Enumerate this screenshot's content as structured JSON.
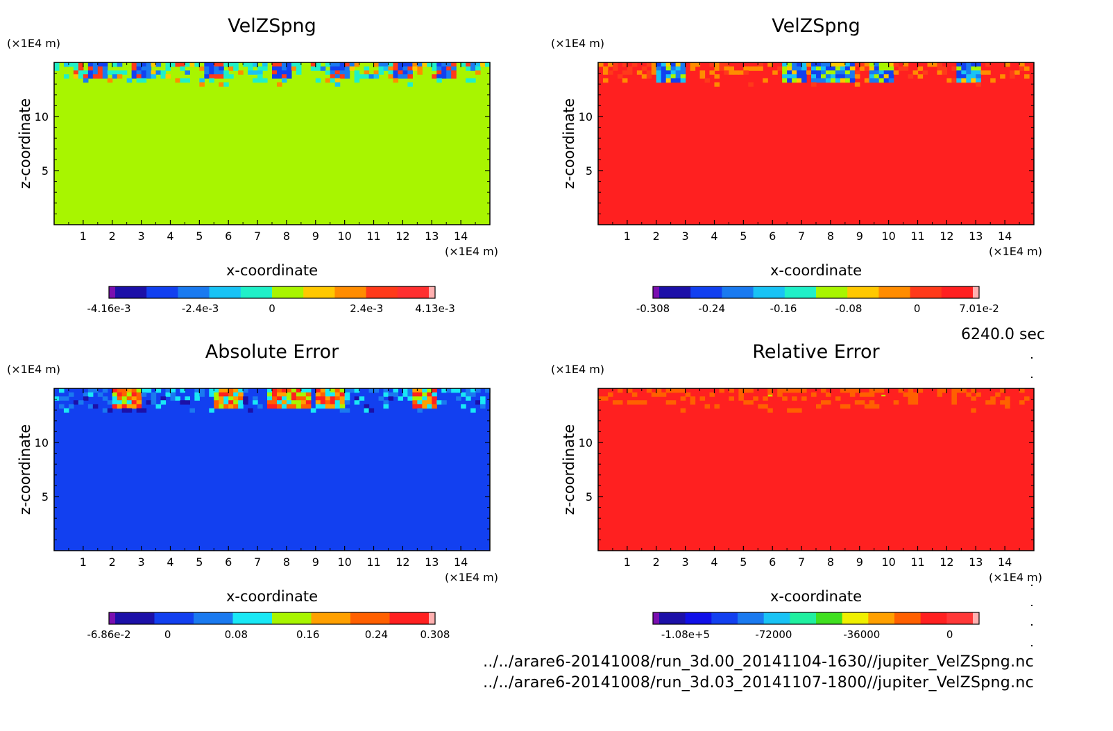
{
  "time_label": "6240.0 sec",
  "files": [
    "../../arare6-20141008/run_3d.00_20141104-1630//jupiter_VelZSpng.nc",
    "../../arare6-20141008/run_3d.03_20141107-1800//jupiter_VelZSpng.nc"
  ],
  "chart_data": [
    {
      "type": "heatmap",
      "title": "VelZSpng",
      "xlabel": "x-coordinate",
      "ylabel": "z-coordinate",
      "x_unit": "(×1E4 m)",
      "y_unit": "(×1E4 m)",
      "xlim": [
        0,
        15
      ],
      "ylim": [
        0,
        15
      ],
      "x_ticks": [
        1,
        2,
        3,
        4,
        5,
        6,
        7,
        8,
        9,
        10,
        11,
        12,
        13,
        14
      ],
      "y_ticks": [
        5,
        10
      ],
      "field": {
        "background_level": 6,
        "layer_z": [
          12.8,
          15
        ],
        "hotspots_x": [
          1.5,
          3,
          5.5,
          7.8,
          9.8,
          12,
          13.5
        ]
      },
      "colorbar": {
        "colors": [
          "#7a0fb0",
          "#1c10a8",
          "#1240f0",
          "#1a7af0",
          "#19c3f5",
          "#20f0c8",
          "#a8f500",
          "#ffc800",
          "#ff8c00",
          "#ff3a1a",
          "#ff3030",
          "#ffb0b0"
        ],
        "tick_labels": [
          "-4.16e-3",
          "-2.4e-3",
          "0",
          "2.4e-3",
          "4.13e-3"
        ],
        "tick_frac": [
          0.0,
          0.28,
          0.5,
          0.79,
          1.0
        ]
      }
    },
    {
      "type": "heatmap",
      "title": "VelZSpng",
      "xlabel": "x-coordinate",
      "ylabel": "z-coordinate",
      "x_unit": "(×1E4 m)",
      "y_unit": "(×1E4 m)",
      "xlim": [
        0,
        15
      ],
      "ylim": [
        0,
        15
      ],
      "x_ticks": [
        1,
        2,
        3,
        4,
        5,
        6,
        7,
        8,
        9,
        10,
        11,
        12,
        13,
        14
      ],
      "y_ticks": [
        5,
        10
      ],
      "field": {
        "background_level": 10,
        "layer_z": [
          12.8,
          15
        ],
        "hotspots_x": [
          2.5,
          6.8,
          7.7,
          8.4,
          9.7,
          12.8
        ]
      },
      "colorbar": {
        "colors": [
          "#7a0fb0",
          "#1c10a8",
          "#1240f0",
          "#1a7af0",
          "#19c3f5",
          "#20f0c8",
          "#a8f500",
          "#ffc800",
          "#ff8c00",
          "#ff3a1a",
          "#ff2020",
          "#ffb0b0"
        ],
        "tick_labels": [
          "-0.308",
          "-0.24",
          "-0.16",
          "-0.08",
          "0",
          "7.01e-2"
        ],
        "tick_frac": [
          0.0,
          0.18,
          0.4,
          0.6,
          0.81,
          1.0
        ]
      }
    },
    {
      "type": "heatmap",
      "title": "Absolute Error",
      "xlabel": "x-coordinate",
      "ylabel": "z-coordinate",
      "x_unit": "(×1E4 m)",
      "y_unit": "(×1E4 m)",
      "xlim": [
        0,
        15
      ],
      "ylim": [
        0,
        15
      ],
      "x_ticks": [
        1,
        2,
        3,
        4,
        5,
        6,
        7,
        8,
        9,
        10,
        11,
        12,
        13,
        14
      ],
      "y_ticks": [
        5,
        10
      ],
      "field": {
        "background_level": 2,
        "layer_z": [
          12.8,
          15
        ],
        "hotspots_x": [
          2.5,
          6,
          7.7,
          8.4,
          9.5,
          12.8
        ]
      },
      "colorbar": {
        "colors": [
          "#7a0fb0",
          "#1c10a8",
          "#1240f0",
          "#1a7af0",
          "#19e8f5",
          "#a8f500",
          "#ffa000",
          "#ff6000",
          "#ff2020",
          "#ffb0b0"
        ],
        "tick_labels": [
          "-6.86e-2",
          "0",
          "0.08",
          "0.16",
          "0.24",
          "0.308"
        ],
        "tick_frac": [
          0.0,
          0.18,
          0.39,
          0.61,
          0.82,
          1.0
        ]
      }
    },
    {
      "type": "heatmap",
      "title": "Relative Error",
      "xlabel": "x-coordinate",
      "ylabel": "z-coordinate",
      "x_unit": "(×1E4 m)",
      "y_unit": "(×1E4 m)",
      "xlim": [
        0,
        15
      ],
      "ylim": [
        0,
        15
      ],
      "x_ticks": [
        1,
        2,
        3,
        4,
        5,
        6,
        7,
        8,
        9,
        10,
        11,
        12,
        13,
        14
      ],
      "y_ticks": [
        5,
        10
      ],
      "field": {
        "background_level": 11,
        "layer_z": [
          12.8,
          15
        ],
        "hotspots_x": []
      },
      "colorbar": {
        "colors": [
          "#7a0fb0",
          "#1c10a8",
          "#1010e8",
          "#1240f0",
          "#1a7af0",
          "#19c3f5",
          "#20f0a0",
          "#40e020",
          "#f0f000",
          "#ffa000",
          "#ff6000",
          "#ff2020",
          "#ff3838",
          "#ffb0b0"
        ],
        "tick_labels": [
          "-1.08e+5",
          "-72000",
          "-36000",
          "0"
        ],
        "tick_frac": [
          0.1,
          0.37,
          0.64,
          0.91
        ]
      }
    }
  ]
}
